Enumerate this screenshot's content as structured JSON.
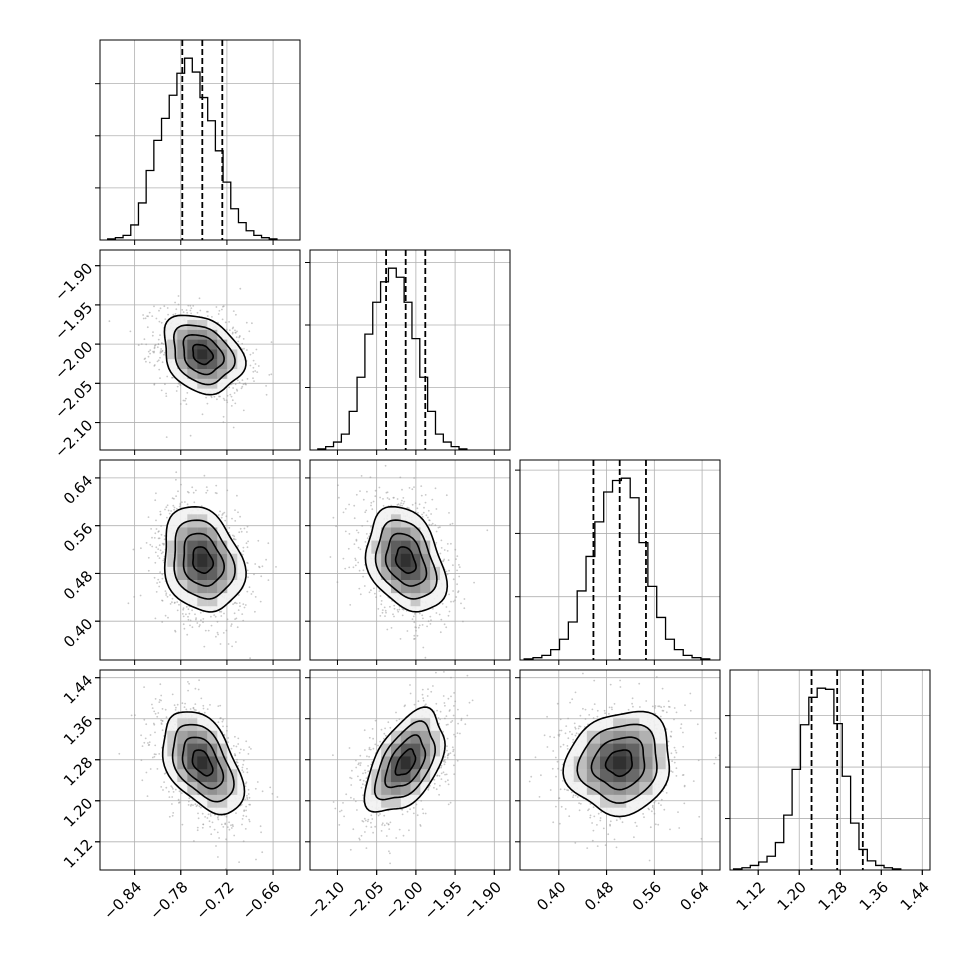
{
  "chart_data": {
    "type": "corner",
    "dims": 4,
    "grid": true,
    "params": [
      {
        "range": [
          -0.885,
          -0.625
        ],
        "ticks": [
          -0.84,
          -0.78,
          -0.72,
          -0.66
        ],
        "tick_labels": [
          "−0.84",
          "−0.78",
          "−0.72",
          "−0.66"
        ],
        "quantiles": [
          -0.778,
          -0.752,
          -0.726
        ],
        "hist": {
          "start": -0.875,
          "width": 0.01,
          "counts": [
            1,
            2,
            4,
            13,
            32,
            60,
            86,
            105,
            125,
            144,
            157,
            145,
            123,
            103,
            77,
            50,
            27,
            15,
            8,
            4,
            2,
            1
          ]
        }
      },
      {
        "range": [
          -2.135,
          -1.88
        ],
        "ticks": [
          -2.1,
          -2.05,
          -2.0,
          -1.95,
          -1.9
        ],
        "tick_labels": [
          "−2.10",
          "−2.05",
          "−2.00",
          "−1.95",
          "−1.90"
        ],
        "quantiles": [
          -2.038,
          -2.013,
          -1.988
        ],
        "hist": {
          "start": -2.125,
          "width": 0.01,
          "counts": [
            1,
            3,
            7,
            14,
            34,
            64,
            102,
            130,
            148,
            160,
            152,
            130,
            98,
            64,
            34,
            14,
            7,
            3,
            1
          ]
        }
      },
      {
        "range": [
          0.335,
          0.67
        ],
        "ticks": [
          0.4,
          0.48,
          0.56,
          0.64
        ],
        "tick_labels": [
          "0.40",
          "0.48",
          "0.56",
          "0.64"
        ],
        "quantiles": [
          0.458,
          0.502,
          0.546
        ],
        "hist": {
          "start": 0.342,
          "width": 0.0148,
          "counts": [
            1,
            2,
            4,
            9,
            18,
            33,
            60,
            90,
            120,
            146,
            156,
            158,
            141,
            102,
            64,
            37,
            18,
            9,
            4,
            2,
            1
          ]
        }
      },
      {
        "range": [
          1.065,
          1.455
        ],
        "ticks": [
          1.12,
          1.2,
          1.28,
          1.36,
          1.44
        ],
        "tick_labels": [
          "1.12",
          "1.20",
          "1.28",
          "1.36",
          "1.44"
        ],
        "quantiles": [
          1.224,
          1.274,
          1.324
        ],
        "hist": {
          "start": 1.072,
          "width": 0.0163,
          "counts": [
            1,
            2,
            4,
            7,
            12,
            24,
            48,
            88,
            127,
            151,
            159,
            158,
            128,
            82,
            41,
            18,
            8,
            4,
            2,
            1
          ]
        }
      }
    ],
    "pairs": [
      {
        "row": 1,
        "col": 0,
        "corr": -0.25
      },
      {
        "row": 2,
        "col": 0,
        "corr": -0.2
      },
      {
        "row": 2,
        "col": 1,
        "corr": -0.3
      },
      {
        "row": 3,
        "col": 0,
        "corr": -0.45
      },
      {
        "row": 3,
        "col": 1,
        "corr": 0.5
      },
      {
        "row": 3,
        "col": 2,
        "corr": 0.1
      }
    ],
    "contour_levels_sigma": [
      0.5,
      1.0,
      1.5,
      2.0
    ]
  }
}
